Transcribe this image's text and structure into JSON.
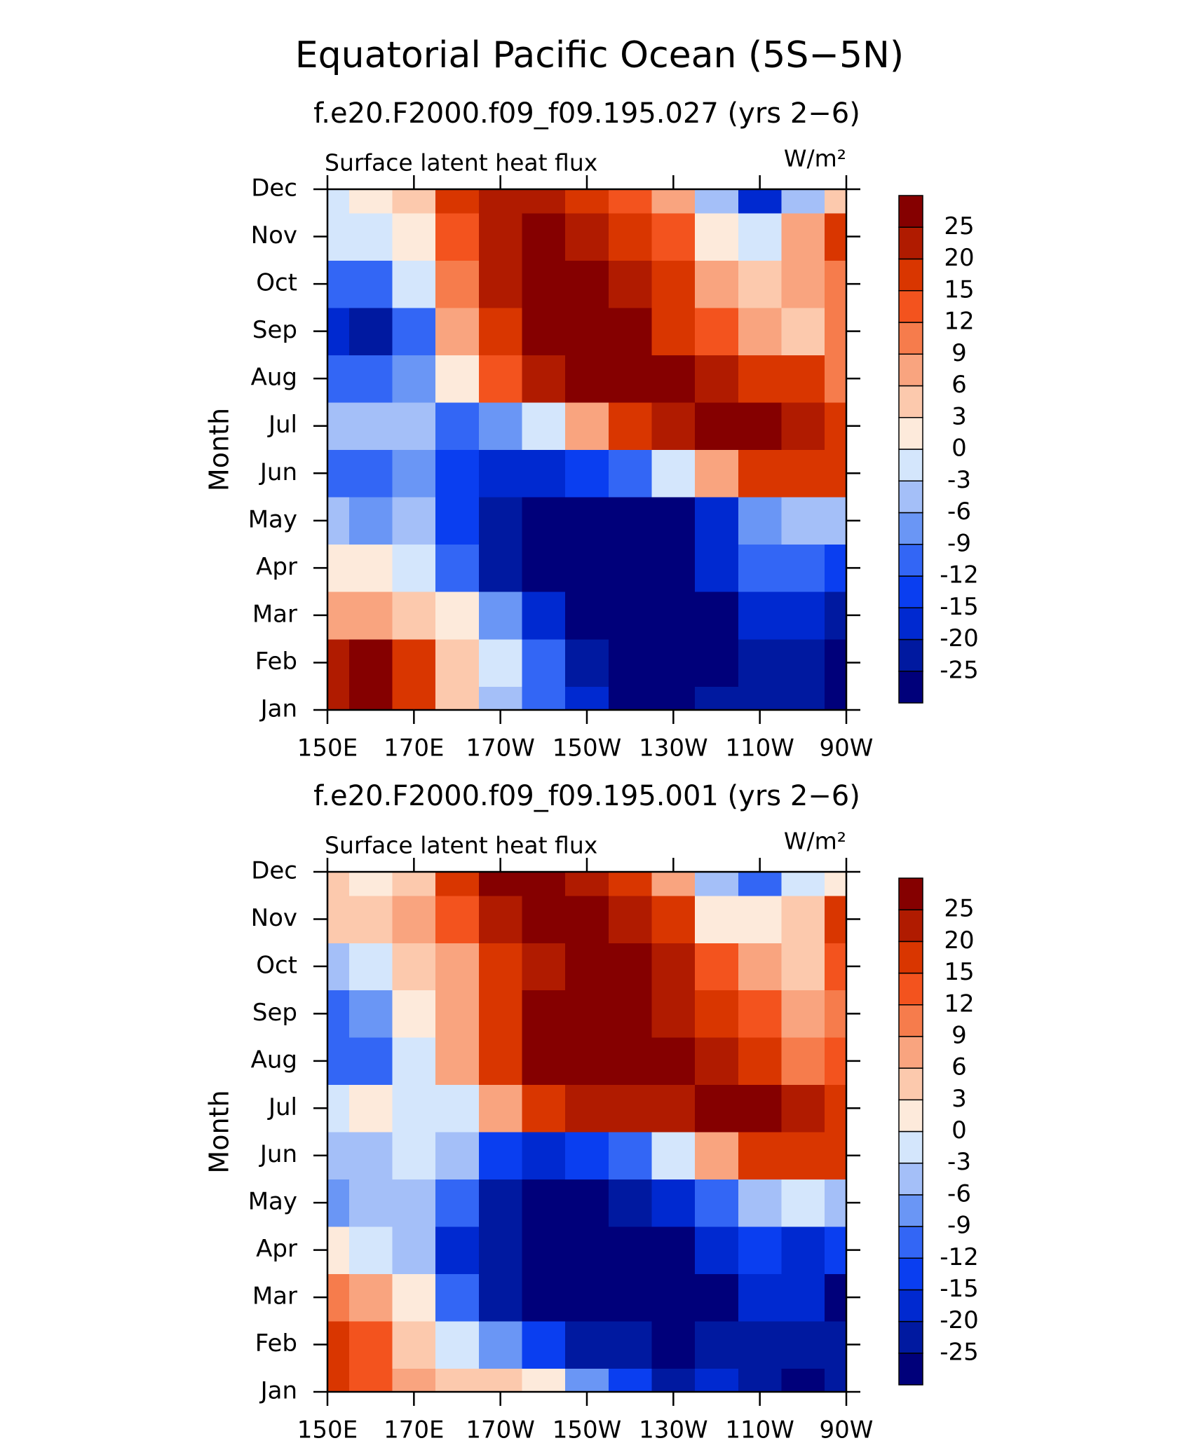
{
  "title": "Equatorial Pacific Ocean (5S−5N)",
  "chart_data": [
    {
      "type": "contour",
      "subtitle": "f.e20.F2000.f09_f09.195.027 (yrs 2−6)",
      "left_label": "Surface latent heat flux",
      "right_label": "W/m²",
      "ylabel": "Month",
      "categories": [
        "Jan",
        "Feb",
        "Mar",
        "Apr",
        "May",
        "Jun",
        "Jul",
        "Aug",
        "Sep",
        "Oct",
        "Nov",
        "Dec"
      ],
      "x": [
        150,
        160,
        170,
        180,
        190,
        200,
        210,
        220,
        230,
        240,
        250,
        260,
        270
      ],
      "xlim": [
        150,
        270
      ],
      "xticks": [
        {
          "value": 150,
          "label": "150E"
        },
        {
          "value": 170,
          "label": "170E"
        },
        {
          "value": 190,
          "label": "170W"
        },
        {
          "value": 210,
          "label": "150W"
        },
        {
          "value": 230,
          "label": "130W"
        },
        {
          "value": 250,
          "label": "110W"
        },
        {
          "value": 270,
          "label": "90W"
        }
      ],
      "levels": [
        -25,
        -20,
        -15,
        -12,
        -9,
        -6,
        -3,
        0,
        3,
        6,
        9,
        12,
        15,
        20,
        25
      ],
      "colors": [
        "#00007a",
        "#0019a0",
        "#0029d0",
        "#0a3ef0",
        "#3366f5",
        "#6a96f5",
        "#a4bff8",
        "#d4e6fc",
        "#fdeadb",
        "#fcc9ad",
        "#f9a47f",
        "#f67c4c",
        "#f3531e",
        "#d93600",
        "#b01b00",
        "#850000"
      ],
      "values": [
        [
          22,
          28,
          15,
          3,
          -5,
          -12,
          -20,
          -26,
          -28,
          -25,
          -24,
          -25,
          -28
        ],
        [
          22,
          27,
          18,
          5,
          -2,
          -10,
          -22,
          -28,
          -28,
          -27,
          -22,
          -22,
          -26
        ],
        [
          6,
          8,
          5,
          0,
          -8,
          -18,
          -28,
          -30,
          -30,
          -28,
          -18,
          -16,
          -22
        ],
        [
          0,
          2,
          -3,
          -10,
          -22,
          -30,
          -30,
          -30,
          -30,
          -20,
          -12,
          -12,
          -15
        ],
        [
          -6,
          -8,
          -5,
          -13,
          -25,
          -28,
          -30,
          -30,
          -26,
          -16,
          -9,
          -5,
          -5
        ],
        [
          -12,
          -10,
          -9,
          -14,
          -18,
          -18,
          -15,
          -10,
          -3,
          8,
          15,
          18,
          15
        ],
        [
          -6,
          -6,
          -5,
          -10,
          -7,
          -2,
          8,
          16,
          22,
          25,
          26,
          22,
          15
        ],
        [
          -12,
          -10,
          -8,
          2,
          12,
          20,
          28,
          28,
          25,
          22,
          18,
          15,
          10
        ],
        [
          -20,
          -25,
          -10,
          6,
          18,
          28,
          30,
          25,
          18,
          12,
          8,
          5,
          10
        ],
        [
          -12,
          -10,
          -3,
          10,
          20,
          30,
          28,
          22,
          15,
          6,
          4,
          6,
          10
        ],
        [
          -3,
          -2,
          2,
          12,
          22,
          30,
          22,
          18,
          12,
          0,
          -2,
          6,
          15
        ],
        [
          -1,
          0,
          3,
          15,
          20,
          22,
          18,
          12,
          6,
          -6,
          -18,
          -5,
          5
        ]
      ]
    },
    {
      "type": "contour",
      "subtitle": "f.e20.F2000.f09_f09.195.001 (yrs 2−6)",
      "left_label": "Surface latent heat flux",
      "right_label": "W/m²",
      "ylabel": "Month",
      "categories": [
        "Jan",
        "Feb",
        "Mar",
        "Apr",
        "May",
        "Jun",
        "Jul",
        "Aug",
        "Sep",
        "Oct",
        "Nov",
        "Dec"
      ],
      "x": [
        150,
        160,
        170,
        180,
        190,
        200,
        210,
        220,
        230,
        240,
        250,
        260,
        270
      ],
      "xlim": [
        150,
        270
      ],
      "xticks": [
        {
          "value": 150,
          "label": "150E"
        },
        {
          "value": 170,
          "label": "170E"
        },
        {
          "value": 190,
          "label": "170W"
        },
        {
          "value": 210,
          "label": "150W"
        },
        {
          "value": 230,
          "label": "130W"
        },
        {
          "value": 250,
          "label": "110W"
        },
        {
          "value": 270,
          "label": "90W"
        }
      ],
      "levels": [
        -25,
        -20,
        -15,
        -12,
        -9,
        -6,
        -3,
        0,
        3,
        6,
        9,
        12,
        15,
        20,
        25
      ],
      "colors": [
        "#00007a",
        "#0019a0",
        "#0029d0",
        "#0a3ef0",
        "#3366f5",
        "#6a96f5",
        "#a4bff8",
        "#d4e6fc",
        "#fdeadb",
        "#fcc9ad",
        "#f9a47f",
        "#f67c4c",
        "#f3531e",
        "#d93600",
        "#b01b00",
        "#850000"
      ],
      "values": [
        [
          15,
          12,
          6,
          3,
          5,
          0,
          -8,
          -15,
          -22,
          -20,
          -22,
          -26,
          -24
        ],
        [
          15,
          12,
          3,
          -3,
          -9,
          -15,
          -22,
          -25,
          -27,
          -25,
          -22,
          -24,
          -24
        ],
        [
          10,
          8,
          0,
          -12,
          -22,
          -30,
          -30,
          -30,
          -30,
          -28,
          -18,
          -20,
          -26
        ],
        [
          0,
          -3,
          -5,
          -18,
          -25,
          -30,
          -30,
          -30,
          -28,
          -20,
          -15,
          -18,
          -15
        ],
        [
          -8,
          -6,
          -4,
          -12,
          -25,
          -30,
          -28,
          -24,
          -18,
          -10,
          -5,
          -3,
          -5
        ],
        [
          -4,
          -5,
          -3,
          -6,
          -15,
          -18,
          -15,
          -10,
          -2,
          8,
          15,
          18,
          15
        ],
        [
          -3,
          2,
          -1,
          -2,
          8,
          16,
          20,
          22,
          22,
          26,
          28,
          20,
          15
        ],
        [
          -12,
          -10,
          -3,
          6,
          18,
          26,
          28,
          28,
          25,
          20,
          18,
          10,
          12
        ],
        [
          -12,
          -9,
          0,
          6,
          18,
          28,
          28,
          25,
          20,
          18,
          12,
          8,
          10
        ],
        [
          -6,
          -3,
          3,
          8,
          16,
          22,
          25,
          25,
          20,
          12,
          6,
          4,
          12
        ],
        [
          3,
          4,
          6,
          12,
          20,
          26,
          28,
          22,
          15,
          2,
          0,
          3,
          15
        ],
        [
          4,
          2,
          3,
          15,
          28,
          28,
          20,
          15,
          6,
          -6,
          -12,
          -2,
          2
        ]
      ]
    }
  ]
}
